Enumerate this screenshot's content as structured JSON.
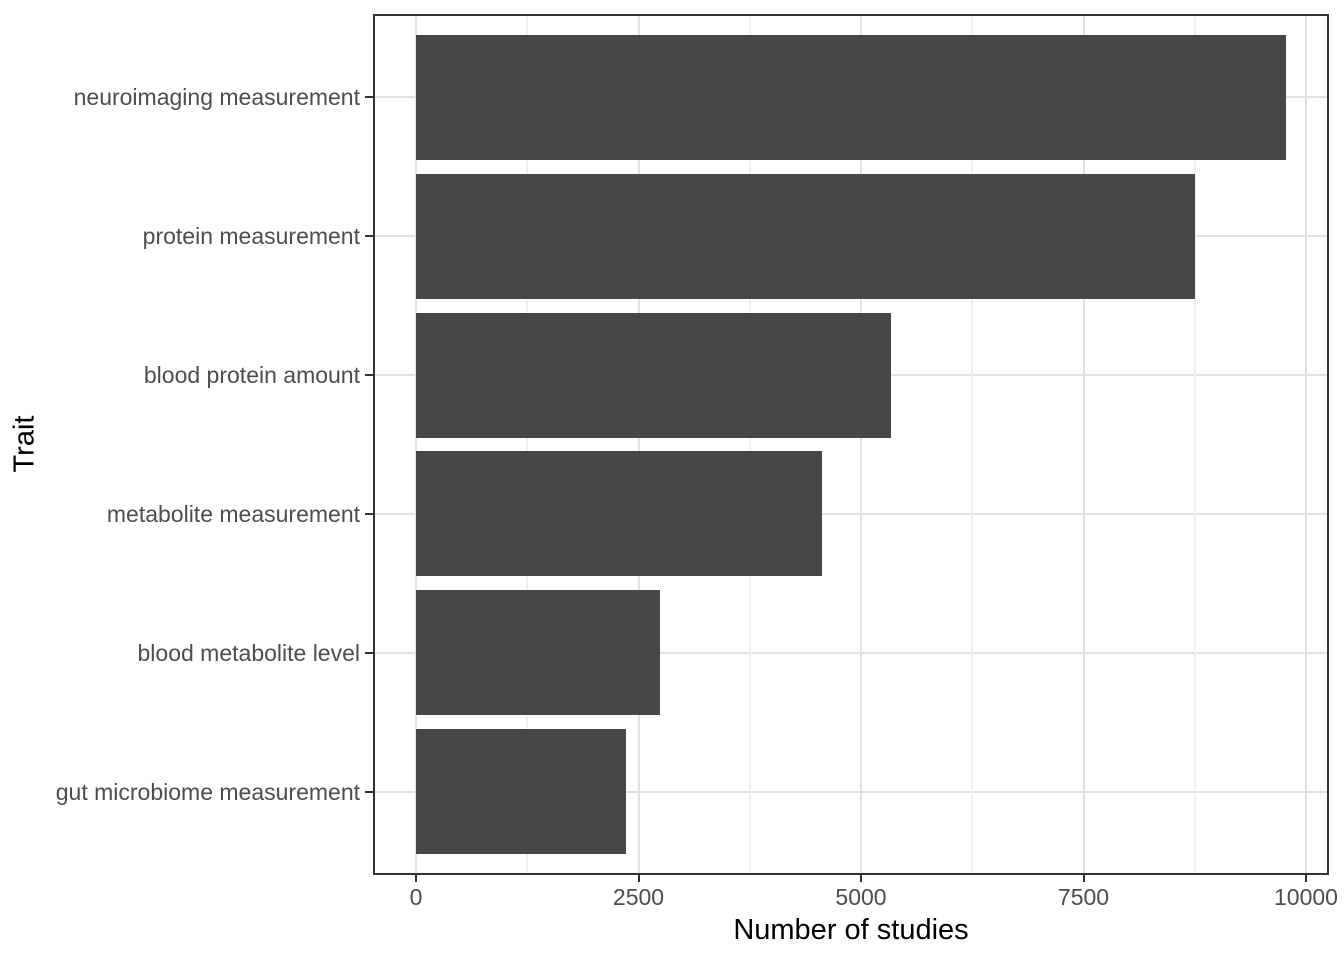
{
  "chart_data": {
    "type": "bar",
    "orientation": "horizontal",
    "title": "",
    "xlabel": "Number of studies",
    "ylabel": "Trait",
    "categories": [
      "neuroimaging measurement",
      "protein measurement",
      "blood protein amount",
      "metabolite measurement",
      "blood metabolite level",
      "gut microbiome measurement"
    ],
    "values": [
      9780,
      8750,
      5340,
      4560,
      2740,
      2360
    ],
    "xlim": [
      0,
      10000
    ],
    "x_major_ticks": [
      0,
      2500,
      5000,
      7500,
      10000
    ],
    "x_major_tick_labels": [
      "0",
      "2500",
      "5000",
      "7500",
      "10000"
    ],
    "x_minor_ticks": [
      1250,
      3750,
      6250,
      8750
    ],
    "grid": {
      "vertical_major": true,
      "vertical_minor": true,
      "horizontal_major": true,
      "horizontal_minor": false
    },
    "legend_position": "none",
    "colors": {
      "bar_fill": "#474747",
      "panel_border": "#333333",
      "grid_major": "#e2e2e2",
      "grid_minor": "#f0f0f0",
      "tick_mark": "#333333",
      "tick_label": "#4d4d4d",
      "axis_title": "#000000",
      "background": "#ffffff"
    }
  }
}
